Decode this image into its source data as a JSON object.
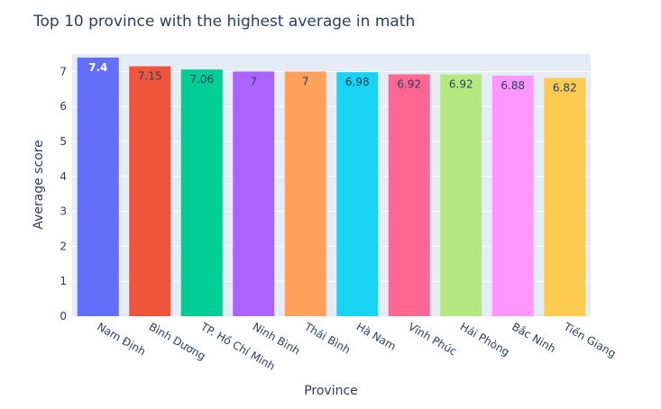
{
  "chart_data": {
    "type": "bar",
    "title": "Top 10 province with the highest average in math",
    "xlabel": "Province",
    "ylabel": "Average score",
    "ylim": [
      0,
      7.5
    ],
    "yticks": [
      0,
      1,
      2,
      3,
      4,
      5,
      6,
      7
    ],
    "grid": true,
    "categories": [
      "Nam Định",
      "Bình Dương",
      "TP. Hồ Chí Minh",
      "Ninh Bình",
      "Thái Bình",
      "Hà Nam",
      "Vĩnh Phúc",
      "Hải Phòng",
      "Bắc Ninh",
      "Tiền Giang"
    ],
    "values": [
      7.4,
      7.15,
      7.06,
      7,
      7,
      6.98,
      6.92,
      6.92,
      6.88,
      6.82
    ],
    "data_labels": [
      "7.4",
      "7.15",
      "7.06",
      "7",
      "7",
      "6.98",
      "6.92",
      "6.92",
      "6.88",
      "6.82"
    ],
    "colors": [
      "#636efa",
      "#EF553B",
      "#00cc96",
      "#ab63fa",
      "#FFA15A",
      "#19d3f3",
      "#FF6692",
      "#B6E880",
      "#FF97FF",
      "#FECB52"
    ],
    "label_colors": [
      "#ffffff",
      "#2a3f5f",
      "#2a3f5f",
      "#2a3f5f",
      "#2a3f5f",
      "#2a3f5f",
      "#2a3f5f",
      "#2a3f5f",
      "#2a3f5f",
      "#2a3f5f"
    ],
    "plot_background": "#e5ecf6",
    "text_color": "#2a3f5f"
  }
}
